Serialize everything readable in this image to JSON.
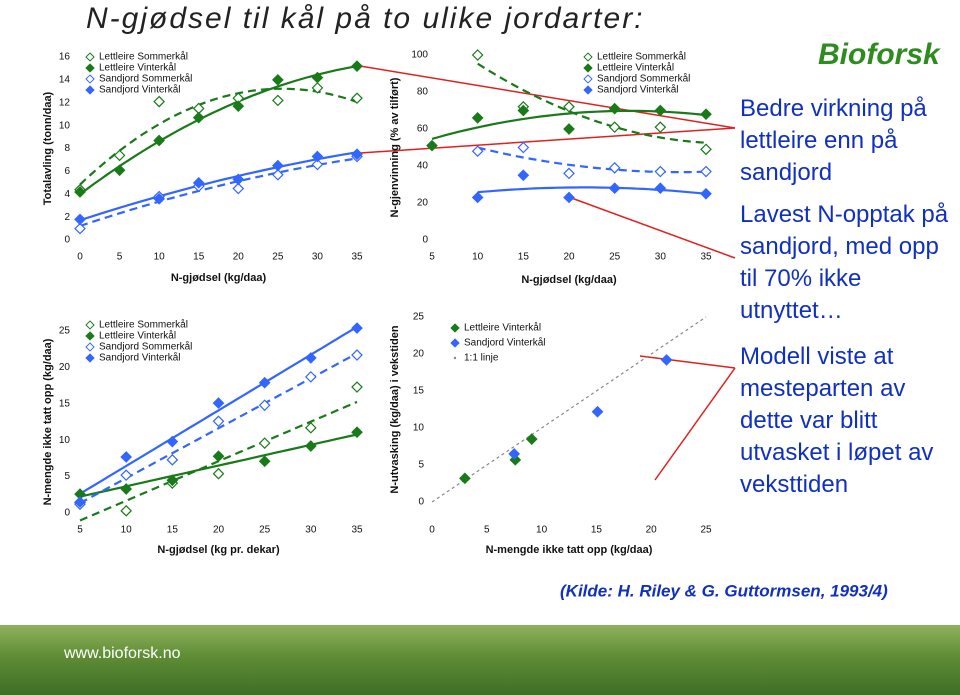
{
  "title": "N-gjødsel til kål på to ulike jordarter:",
  "logo": "Bioforsk",
  "notes": [
    "Bedre virkning på lettleire enn på sandjord",
    "Lavest N-opptak på sandjord, med opp til 70% ikke utnyttet…",
    "Modell viste at mesteparten av dette var blitt utvasket i løpet av veksttiden"
  ],
  "source": "(Kilde: H. Riley &  G. Guttormsen, 1993/4)",
  "footer": "www.bioforsk.no",
  "chart_data": [
    {
      "type": "scatter",
      "trend": "quadratic",
      "x_label": "N-gjødsel (kg/daa)",
      "y_label": "Totalavling (tonn/daa)",
      "x": [
        0,
        5,
        10,
        15,
        20,
        25,
        30,
        35
      ],
      "xlim": [
        0,
        35
      ],
      "xticks": [
        0,
        5,
        10,
        15,
        20,
        25,
        30,
        35
      ],
      "ylim": [
        0,
        16
      ],
      "yticks": [
        0,
        2,
        4,
        6,
        8,
        10,
        12,
        14,
        16
      ],
      "series": [
        {
          "name": "Lettleire Sommerkål",
          "color": "#1a7a1a",
          "marker": "open",
          "line": "dashed",
          "values": [
            4.4,
            7.4,
            12.1,
            11.5,
            12.4,
            12.2,
            13.3,
            12.4
          ]
        },
        {
          "name": "Lettleire Vinterkål",
          "color": "#1a7a1a",
          "marker": "filled",
          "line": "solid",
          "values": [
            4.2,
            6.1,
            8.7,
            10.7,
            11.7,
            14.0,
            14.2,
            15.2
          ]
        },
        {
          "name": "Sandjord Sommerkål",
          "color": "#3366ff",
          "marker": "open",
          "line": "dashed",
          "values": [
            1.0,
            null,
            3.8,
            4.7,
            4.5,
            5.7,
            6.6,
            7.3
          ]
        },
        {
          "name": "Sandjord Vinterkål",
          "color": "#3366ff",
          "marker": "filled",
          "line": "solid",
          "values": [
            1.8,
            null,
            3.6,
            5.0,
            5.3,
            6.5,
            7.3,
            7.5
          ]
        }
      ]
    },
    {
      "type": "scatter",
      "trend": "linear",
      "x_label": "N-gjødsel (kg pr. dekar)",
      "y_label": "N-mengde ikke tatt opp (kg/daa)",
      "x": [
        5,
        10,
        15,
        20,
        25,
        30,
        35
      ],
      "xlim": [
        5,
        35
      ],
      "xticks": [
        5,
        10,
        15,
        20,
        25,
        30,
        35
      ],
      "ylim": [
        0,
        25
      ],
      "yticks": [
        0,
        5,
        10,
        15,
        20,
        25
      ],
      "series": [
        {
          "name": "Lettleire Sommerkål",
          "color": "#1a7a1a",
          "marker": "open",
          "line": "dashed",
          "values": [
            1.4,
            0.3,
            4.1,
            5.4,
            9.6,
            11.7,
            17.3
          ]
        },
        {
          "name": "Lettleire Vinterkål",
          "color": "#1a7a1a",
          "marker": "filled",
          "line": "solid",
          "values": [
            2.6,
            3.3,
            4.5,
            7.8,
            7.1,
            9.2,
            11.1
          ]
        },
        {
          "name": "Sandjord Sommerkål",
          "color": "#3366ff",
          "marker": "open",
          "line": "dashed",
          "values": [
            1.2,
            5.2,
            7.3,
            12.6,
            14.8,
            18.7,
            21.7
          ]
        },
        {
          "name": "Sandjord Vinterkål",
          "color": "#3366ff",
          "marker": "filled",
          "line": "solid",
          "values": [
            1.5,
            7.7,
            9.8,
            15.1,
            17.9,
            21.3,
            25.4
          ]
        }
      ]
    },
    {
      "type": "scatter",
      "trend": "quadratic",
      "x_label": "N-gjødsel (kg/daa)",
      "y_label": "N-gjenvinning (% av tilført)",
      "x": [
        5,
        10,
        15,
        20,
        25,
        30,
        35
      ],
      "xlim": [
        5,
        35
      ],
      "xticks": [
        5,
        10,
        15,
        20,
        25,
        30,
        35
      ],
      "ylim": [
        0,
        100
      ],
      "yticks": [
        0,
        20,
        40,
        60,
        80,
        100
      ],
      "series": [
        {
          "name": "Lettleire Sommerkål",
          "color": "#1a7a1a",
          "marker": "open",
          "line": "dashed",
          "values": [
            null,
            100,
            72,
            72,
            61,
            61,
            49
          ]
        },
        {
          "name": "Lettleire Vinterkål",
          "color": "#1a7a1a",
          "marker": "filled",
          "line": "solid",
          "values": [
            51,
            66,
            70,
            60,
            71,
            70,
            68
          ]
        },
        {
          "name": "Sandjord Sommerkål",
          "color": "#3366ff",
          "marker": "open",
          "line": "dashed",
          "values": [
            null,
            48,
            50,
            36,
            39,
            37,
            37
          ]
        },
        {
          "name": "Sandjord Vinterkål",
          "color": "#3366ff",
          "marker": "filled",
          "line": "solid",
          "values": [
            null,
            23,
            35,
            23,
            28,
            28,
            25
          ]
        }
      ]
    },
    {
      "type": "scatter",
      "x_label": "N-mengde ikke tatt opp (kg/daa)",
      "y_label": "N-utvasking (kg/daa) i vekstiden",
      "xlim": [
        0,
        25
      ],
      "xticks": [
        0,
        5,
        10,
        15,
        20,
        25
      ],
      "ylim": [
        0,
        25
      ],
      "yticks": [
        0,
        5,
        10,
        15,
        20,
        25
      ],
      "series": [
        {
          "name": "Lettleire Vinterkål",
          "color": "#1a7a1a",
          "marker": "filled",
          "x": [
            3.0,
            7.6,
            9.1
          ],
          "values": [
            3.2,
            5.7,
            8.5
          ]
        },
        {
          "name": "Sandjord Vinterkål",
          "color": "#3366ff",
          "marker": "filled",
          "x": [
            7.5,
            15.1,
            21.4
          ],
          "values": [
            6.5,
            12.2,
            19.2
          ]
        },
        {
          "name": "1:1 linje",
          "color": "#888888",
          "marker": "dot",
          "line": "dotted",
          "x": [
            0,
            25
          ],
          "values": [
            0,
            25
          ]
        }
      ]
    }
  ]
}
